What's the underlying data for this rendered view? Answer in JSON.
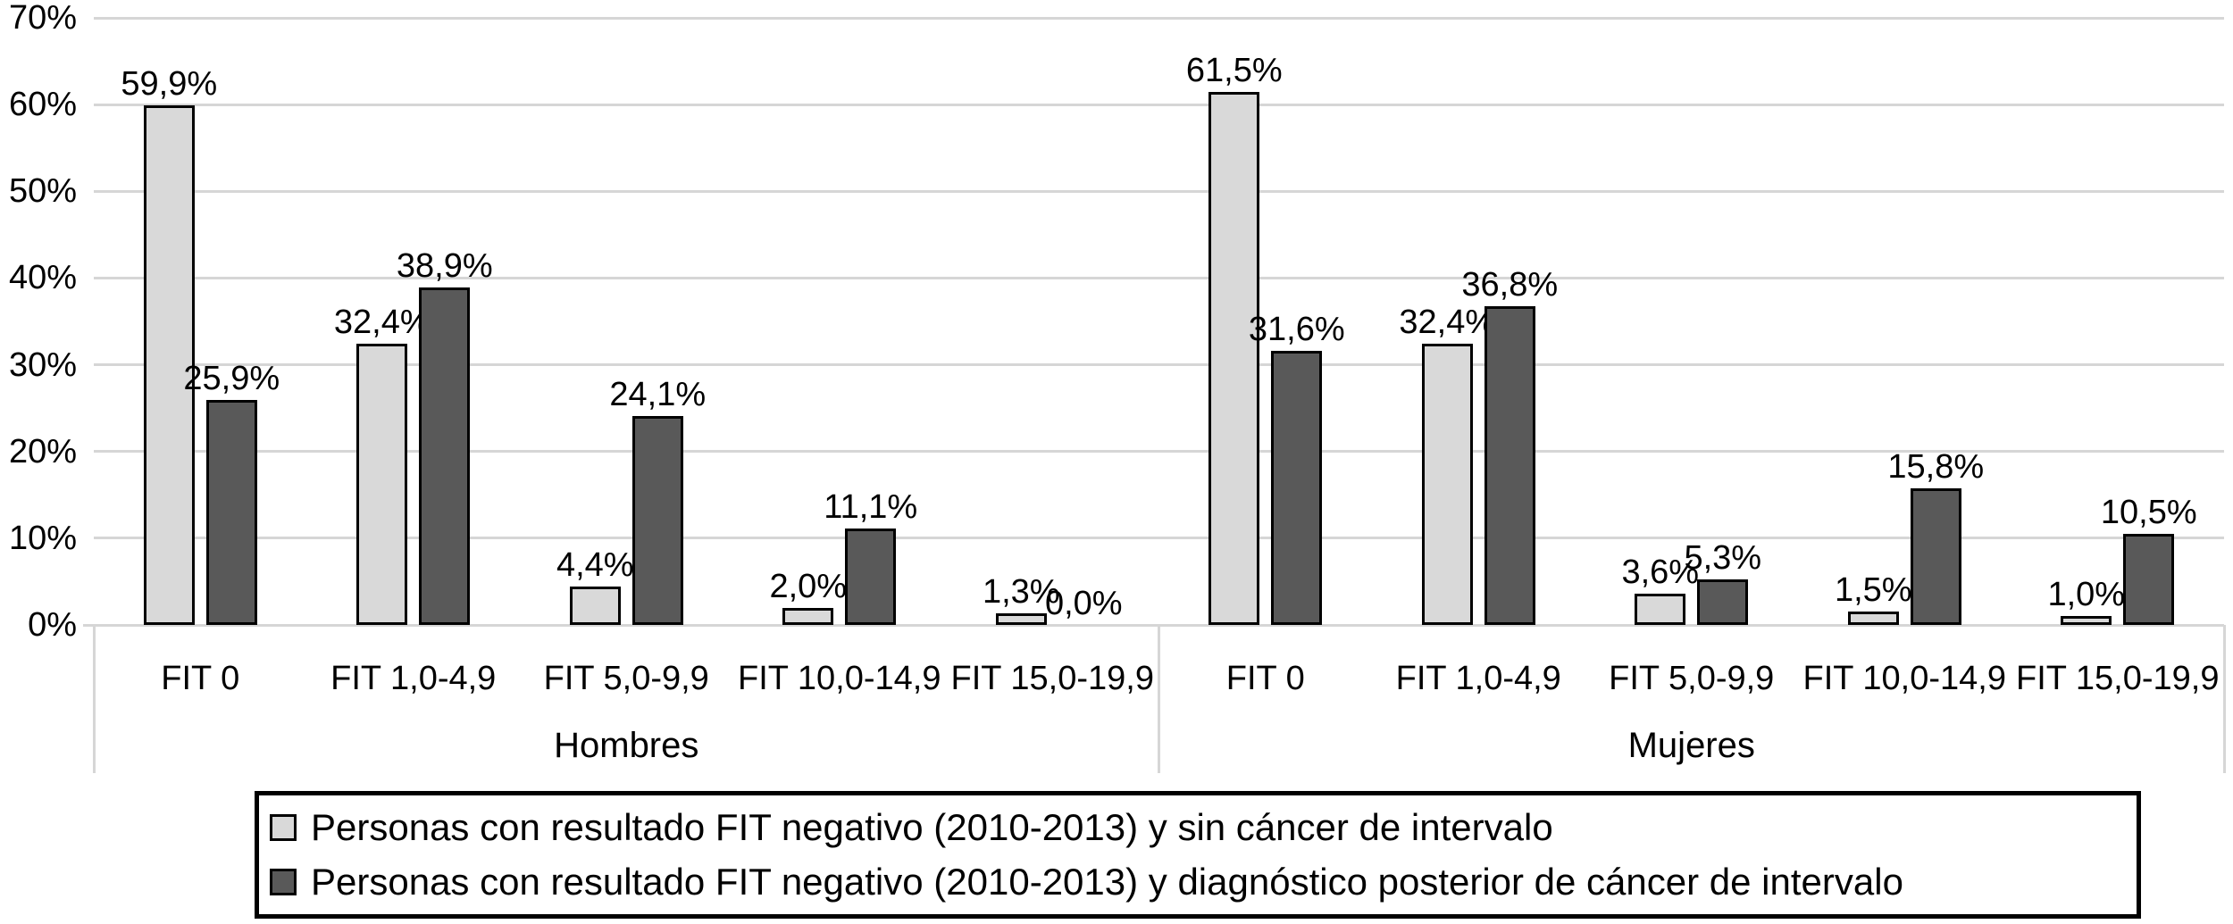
{
  "chart_data": {
    "type": "bar",
    "title": "",
    "xlabel": "",
    "ylabel": "",
    "ylim": [
      0,
      70
    ],
    "ytick_step": 10,
    "ytick_labels": [
      "0%",
      "10%",
      "20%",
      "30%",
      "40%",
      "50%",
      "60%",
      "70%"
    ],
    "grid": true,
    "legend_position": "bottom-boxed",
    "groups": [
      {
        "label": "Hombres",
        "categories": [
          "FIT 0",
          "FIT 1,0-4,9",
          "FIT 5,0-9,9",
          "FIT 10,0-14,9",
          "FIT 15,0-19,9"
        ]
      },
      {
        "label": "Mujeres",
        "categories": [
          "FIT 0",
          "FIT 1,0-4,9",
          "FIT 5,0-9,9",
          "FIT 10,0-14,9",
          "FIT 15,0-19,9"
        ]
      }
    ],
    "series": [
      {
        "name": "Personas con resultado FIT negativo (2010-2013) y sin cáncer de intervalo",
        "color": "#d9d9d9",
        "values": [
          [
            59.9,
            32.4,
            4.4,
            2.0,
            1.3
          ],
          [
            61.5,
            32.4,
            3.6,
            1.5,
            1.0
          ]
        ],
        "value_labels": [
          [
            "59,9%",
            "32,4%",
            "4,4%",
            "2,0%",
            "1,3%"
          ],
          [
            "61,5%",
            "32,4%",
            "3,6%",
            "1,5%",
            "1,0%"
          ]
        ]
      },
      {
        "name": "Personas con resultado FIT negativo (2010-2013) y diagnóstico posterior de cáncer de intervalo",
        "color": "#595959",
        "values": [
          [
            25.9,
            38.9,
            24.1,
            11.1,
            0.0
          ],
          [
            31.6,
            36.8,
            5.3,
            15.8,
            10.5
          ]
        ],
        "value_labels": [
          [
            "25,9%",
            "38,9%",
            "24,1%",
            "11,1%",
            "0,0%"
          ],
          [
            "31,6%",
            "36,8%",
            "5,3%",
            "15,8%",
            "10,5%"
          ]
        ]
      }
    ],
    "theme": {
      "background": "#ffffff",
      "text": "#000000",
      "gridline": "#d6d6d6",
      "bar_border": "#000000",
      "legend_border": "#000000"
    }
  }
}
